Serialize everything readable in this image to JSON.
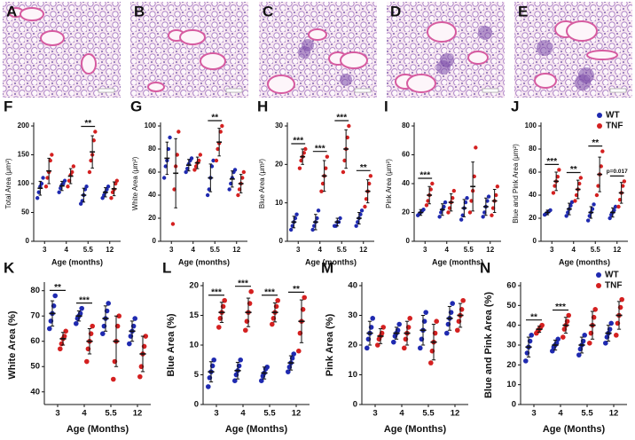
{
  "images": [
    {
      "label": "A"
    },
    {
      "label": "B"
    },
    {
      "label": "C"
    },
    {
      "label": "D"
    },
    {
      "label": "E"
    }
  ],
  "chart_data": [
    {
      "type": "dotplot",
      "label": "F",
      "ylabel": "Total Area (μm²)",
      "xlabel": "Age (months)",
      "categories": [
        "3",
        "4",
        "5.5",
        "12"
      ],
      "ylim": [
        0,
        200
      ],
      "yticks": [
        0,
        50,
        100,
        150,
        200
      ],
      "series": [
        {
          "color": "#1f2ab0",
          "values": [
            [
              75,
              85,
              95,
              100,
              110
            ],
            [
              85,
              92,
              98,
              100,
              105
            ],
            [
              65,
              70,
              80,
              90,
              95
            ],
            [
              75,
              80,
              85,
              90,
              95
            ]
          ],
          "means": [
            92,
            96,
            80,
            85
          ],
          "sds": [
            12,
            8,
            12,
            8
          ]
        },
        {
          "color": "#d42020",
          "values": [
            [
              95,
              110,
              120,
              140,
              150
            ],
            [
              95,
              105,
              115,
              120,
              130
            ],
            [
              120,
              140,
              150,
              175,
              190
            ],
            [
              75,
              85,
              90,
              100,
              105
            ]
          ],
          "means": [
            122,
            113,
            155,
            91
          ],
          "sds": [
            22,
            13,
            28,
            12
          ]
        }
      ],
      "significance": [
        null,
        null,
        "**",
        null
      ]
    },
    {
      "type": "dotplot",
      "label": "G",
      "ylabel": "White Area (μm²)",
      "xlabel": "Age (months)",
      "categories": [
        "3",
        "4",
        "5.5",
        "12"
      ],
      "ylim": [
        0,
        100
      ],
      "yticks": [
        0,
        20,
        40,
        60,
        80,
        100
      ],
      "series": [
        {
          "color": "#1f2ab0",
          "values": [
            [
              55,
              65,
              70,
              80,
              90
            ],
            [
              60,
              63,
              67,
              70,
              72
            ],
            [
              40,
              45,
              55,
              65,
              70
            ],
            [
              45,
              50,
              55,
              60,
              62
            ]
          ],
          "means": [
            72,
            66,
            55,
            54
          ],
          "sds": [
            14,
            5,
            12,
            7
          ]
        },
        {
          "color": "#d42020",
          "values": [
            [
              15,
              45,
              65,
              75,
              95
            ],
            [
              62,
              65,
              68,
              70,
              75
            ],
            [
              70,
              80,
              85,
              95,
              100
            ],
            [
              40,
              45,
              50,
              55,
              60
            ]
          ],
          "means": [
            59,
            68,
            86,
            50
          ],
          "sds": [
            30,
            5,
            12,
            8
          ]
        }
      ],
      "significance": [
        null,
        null,
        "**",
        null
      ]
    },
    {
      "type": "dotplot",
      "label": "H",
      "ylabel": "Blue Area (μm²)",
      "xlabel": "Age (months)",
      "categories": [
        "3",
        "4",
        "5.5",
        "12"
      ],
      "ylim": [
        0,
        30
      ],
      "yticks": [
        0,
        10,
        20,
        30
      ],
      "series": [
        {
          "color": "#1f2ab0",
          "values": [
            [
              3,
              4,
              5,
              6,
              7
            ],
            [
              3,
              4,
              5,
              6,
              8
            ],
            [
              4,
              4,
              5,
              5,
              6
            ],
            [
              4,
              5,
              6,
              7,
              8
            ]
          ],
          "means": [
            5,
            5,
            5,
            6
          ],
          "sds": [
            1.5,
            2,
            1,
            1.5
          ]
        },
        {
          "color": "#d42020",
          "values": [
            [
              19,
              21,
              22,
              23,
              24
            ],
            [
              13,
              15,
              17,
              19,
              22
            ],
            [
              18,
              21,
              24,
              27,
              30
            ],
            [
              9,
              11,
              13,
              15,
              17
            ]
          ],
          "means": [
            22,
            17,
            24,
            13
          ],
          "sds": [
            2,
            4,
            5,
            3
          ]
        }
      ],
      "significance": [
        "***",
        "***",
        "***",
        "**"
      ]
    },
    {
      "type": "dotplot",
      "label": "I",
      "ylabel": "Pink Area (μm²)",
      "xlabel": "Age (months)",
      "categories": [
        "3",
        "4",
        "5.5",
        "12"
      ],
      "ylim": [
        0,
        80
      ],
      "yticks": [
        0,
        20,
        40,
        60,
        80
      ],
      "series": [
        {
          "color": "#1f2ab0",
          "values": [
            [
              18,
              19,
              20,
              21,
              22
            ],
            [
              17,
              20,
              22,
              24,
              27
            ],
            [
              15,
              18,
              23,
              27,
              30
            ],
            [
              17,
              20,
              24,
              28,
              31
            ]
          ],
          "means": [
            20,
            22,
            23,
            24
          ],
          "sds": [
            2,
            4,
            6,
            6
          ]
        },
        {
          "color": "#d42020",
          "values": [
            [
              25,
              28,
              32,
              36,
              40
            ],
            [
              20,
              23,
              27,
              30,
              35
            ],
            [
              20,
              28,
              35,
              45,
              65
            ],
            [
              18,
              23,
              28,
              32,
              38
            ]
          ],
          "means": [
            32,
            27,
            38,
            28
          ],
          "sds": [
            6,
            6,
            17,
            8
          ]
        }
      ],
      "significance": [
        "***",
        null,
        null,
        null
      ]
    },
    {
      "type": "dotplot",
      "label": "J",
      "ylabel": "Blue and Pink Area (μm²)",
      "xlabel": "Age (months)",
      "categories": [
        "3",
        "4",
        "5.5",
        "12"
      ],
      "ylim": [
        0,
        100
      ],
      "yticks": [
        0,
        20,
        40,
        60,
        80,
        100
      ],
      "legend": "upper right",
      "series": [
        {
          "name": "WT",
          "color": "#1f2ab0",
          "values": [
            [
              23,
              24,
              25,
              26,
              27
            ],
            [
              22,
              25,
              28,
              31,
              34
            ],
            [
              18,
              22,
              25,
              28,
              32
            ],
            [
              20,
              23,
              25,
              27,
              30
            ]
          ],
          "means": [
            25,
            28,
            25,
            25
          ],
          "sds": [
            2,
            5,
            5,
            4
          ]
        },
        {
          "name": "TNF",
          "color": "#d42020",
          "values": [
            [
              42,
              48,
              52,
              56,
              62
            ],
            [
              35,
              40,
              45,
              50,
              55
            ],
            [
              40,
              48,
              58,
              65,
              78
            ],
            [
              30,
              36,
              42,
              48,
              52
            ]
          ],
          "means": [
            52,
            45,
            58,
            42
          ],
          "sds": [
            8,
            8,
            15,
            9
          ]
        }
      ],
      "significance": [
        "***",
        "**",
        "**",
        "p=0.017"
      ]
    },
    {
      "type": "dotplot",
      "label": "K",
      "ylabel": "White Area (%)",
      "xlabel": "Age  (Months)",
      "categories": [
        "3",
        "4",
        "5.5",
        "12"
      ],
      "ylim": [
        35,
        82
      ],
      "yticks": [
        40,
        50,
        60,
        70,
        80
      ],
      "series": [
        {
          "color": "#1f2ab0",
          "values": [
            [
              65,
              68,
              71,
              74,
              78
            ],
            [
              67,
              69,
              70,
              71,
              73
            ],
            [
              63,
              66,
              69,
              72,
              75
            ],
            [
              59,
              62,
              64,
              66,
              69
            ]
          ],
          "means": [
            71,
            70,
            69,
            64
          ],
          "sds": [
            5,
            2,
            5,
            4
          ]
        },
        {
          "color": "#d42020",
          "values": [
            [
              57,
              59,
              61,
              62,
              64
            ],
            [
              52,
              57,
              60,
              63,
              66
            ],
            [
              45,
              52,
              60,
              66,
              70
            ],
            [
              46,
              50,
              55,
              58,
              62
            ]
          ],
          "means": [
            61,
            60,
            60,
            55
          ],
          "sds": [
            2.5,
            5,
            10,
            7
          ]
        }
      ],
      "significance": [
        "**",
        "***",
        null,
        null
      ]
    },
    {
      "type": "dotplot",
      "label": "L",
      "ylabel": "Blue Area (%)",
      "xlabel": "Age  (Months)",
      "categories": [
        "3",
        "4",
        "5.5",
        "12"
      ],
      "ylim": [
        0,
        20
      ],
      "yticks": [
        0,
        5,
        10,
        15,
        20
      ],
      "series": [
        {
          "color": "#1f2ab0",
          "values": [
            [
              3,
              4.5,
              5.5,
              6.5,
              7.5
            ],
            [
              4,
              5,
              5.7,
              6.5,
              7.5
            ],
            [
              4,
              4.8,
              5.3,
              6,
              6.3
            ],
            [
              5.5,
              6.3,
              7,
              7.8,
              8.5
            ]
          ],
          "means": [
            5.5,
            5.7,
            5.3,
            7
          ],
          "sds": [
            1.7,
            1.4,
            1,
            1.2
          ]
        },
        {
          "color": "#d42020",
          "values": [
            [
              13,
              14.5,
              15.5,
              16.5,
              17.5
            ],
            [
              12.5,
              14,
              15.5,
              17,
              19
            ],
            [
              13.5,
              14.5,
              15.5,
              16.5,
              17.5
            ],
            [
              9,
              12,
              14,
              16,
              18
            ]
          ],
          "means": [
            15.5,
            15.5,
            15.5,
            14
          ],
          "sds": [
            1.7,
            2.4,
            1.6,
            3.6
          ]
        }
      ],
      "significance": [
        "***",
        "***",
        "***",
        "**"
      ]
    },
    {
      "type": "dotplot",
      "label": "M",
      "ylabel": "Pink Area (%)",
      "xlabel": "Age  (Months)",
      "categories": [
        "3",
        "4",
        "5.5",
        "12"
      ],
      "ylim": [
        0,
        40
      ],
      "yticks": [
        0,
        10,
        20,
        30,
        40
      ],
      "series": [
        {
          "color": "#1f2ab0",
          "values": [
            [
              19,
              22,
              24,
              26,
              29
            ],
            [
              21,
              23,
              24,
              25,
              27
            ],
            [
              19,
              22,
              25,
              28,
              31
            ],
            [
              24,
              27,
              29,
              31,
              34
            ]
          ],
          "means": [
            24,
            24,
            25,
            29
          ],
          "sds": [
            4,
            2,
            5,
            4
          ]
        },
        {
          "color": "#d42020",
          "values": [
            [
              20,
              22,
              23,
              24,
              26
            ],
            [
              19,
              22,
              24,
              26,
              29
            ],
            [
              14,
              18,
              21,
              24,
              28
            ],
            [
              25,
              28,
              30,
              32,
              35
            ]
          ],
          "means": [
            23,
            24,
            21,
            30
          ],
          "sds": [
            2.5,
            4,
            6,
            4
          ]
        }
      ],
      "significance": [
        null,
        null,
        null,
        null
      ]
    },
    {
      "type": "dotplot",
      "label": "N",
      "ylabel": "Blue and Pink Area (%)",
      "xlabel": "Age  (Months)",
      "categories": [
        "3",
        "4",
        "5.5",
        "12"
      ],
      "ylim": [
        0,
        60
      ],
      "yticks": [
        0,
        10,
        20,
        30,
        40,
        50,
        60
      ],
      "legend": "upper right",
      "series": [
        {
          "name": "WT",
          "color": "#1f2ab0",
          "values": [
            [
              22,
              26,
              29,
              32,
              35
            ],
            [
              27,
              29,
              30,
              31,
              33
            ],
            [
              25,
              28,
              30,
              32,
              35
            ],
            [
              31,
              34,
              36,
              38,
              41
            ]
          ],
          "means": [
            29,
            30,
            30,
            36
          ],
          "sds": [
            5,
            2.5,
            4,
            4
          ]
        },
        {
          "name": "TNF",
          "color": "#d42020",
          "values": [
            [
              36,
              37,
              38,
              39,
              40
            ],
            [
              34,
              38,
              40,
              42,
              45
            ],
            [
              31,
              36,
              40,
              44,
              48
            ],
            [
              35,
              41,
              45,
              49,
              53
            ]
          ],
          "means": [
            38,
            40,
            40,
            45
          ],
          "sds": [
            1.5,
            4,
            7,
            7
          ]
        }
      ],
      "significance": [
        "**",
        "***",
        null,
        null
      ]
    }
  ]
}
